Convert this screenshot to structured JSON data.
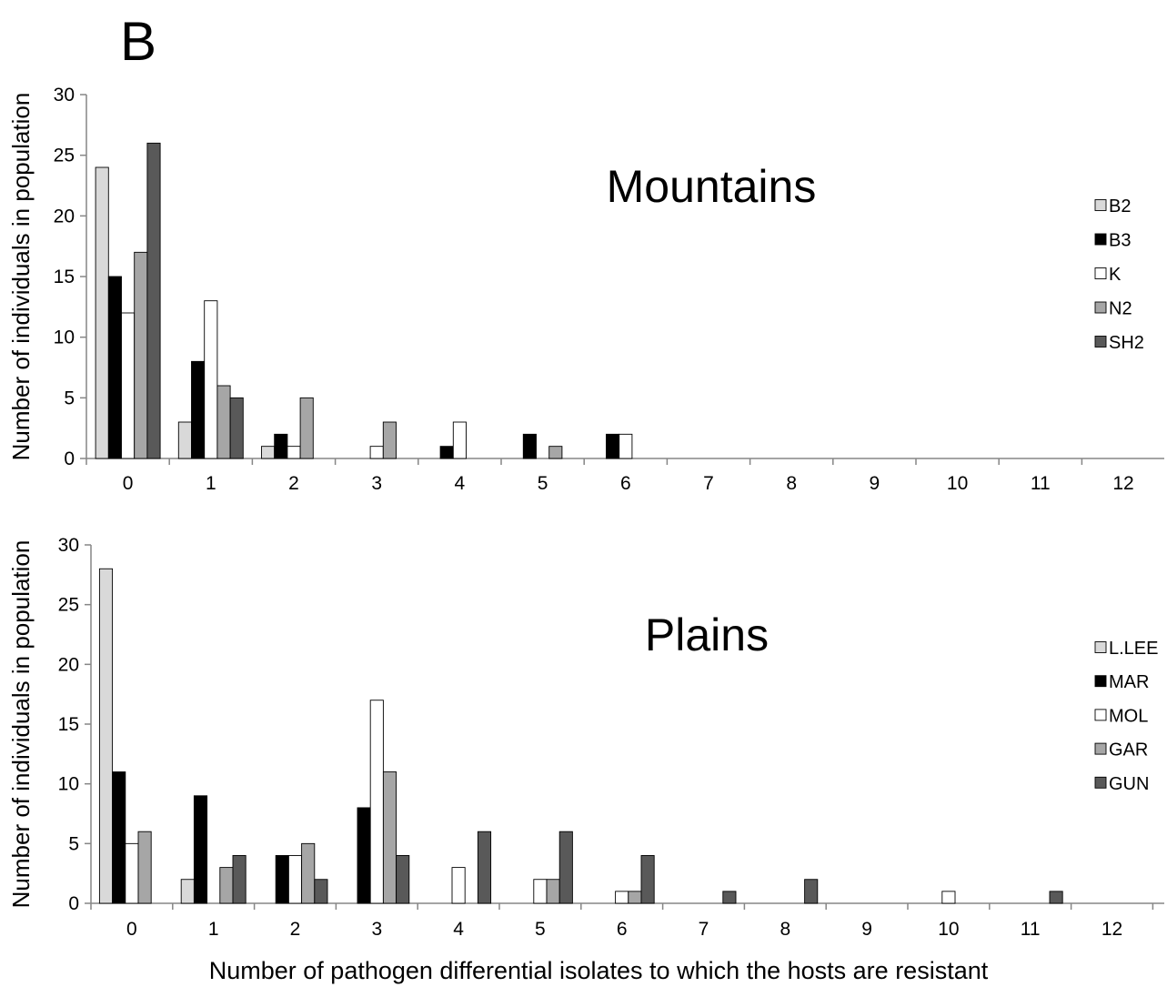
{
  "panel_label": "B",
  "xlabel": "Number of pathogen differential isolates to which the hosts are resistant",
  "chart_data": [
    {
      "type": "bar",
      "title": "Mountains",
      "ylabel": "Number of individuals in population",
      "xlabel": "Number of pathogen differential isolates to which the hosts are resistant",
      "ylim": [
        0,
        30
      ],
      "yticks": [
        0,
        5,
        10,
        15,
        20,
        25,
        30
      ],
      "categories": [
        "0",
        "1",
        "2",
        "3",
        "4",
        "5",
        "6",
        "7",
        "8",
        "9",
        "10",
        "11",
        "12"
      ],
      "legend_position": "right",
      "grid": false,
      "series": [
        {
          "name": "B2",
          "color": "#d9d9d9",
          "values": [
            24,
            3,
            1,
            0,
            0,
            0,
            0,
            0,
            0,
            0,
            0,
            0,
            0
          ]
        },
        {
          "name": "B3",
          "color": "#000000",
          "values": [
            15,
            8,
            2,
            0,
            1,
            2,
            2,
            0,
            0,
            0,
            0,
            0,
            0
          ]
        },
        {
          "name": "K",
          "color": "#ffffff",
          "values": [
            12,
            13,
            1,
            1,
            3,
            0,
            2,
            0,
            0,
            0,
            0,
            0,
            0
          ]
        },
        {
          "name": "N2",
          "color": "#a6a6a6",
          "values": [
            17,
            6,
            5,
            3,
            0,
            1,
            0,
            0,
            0,
            0,
            0,
            0,
            0
          ]
        },
        {
          "name": "SH2",
          "color": "#595959",
          "values": [
            26,
            5,
            0,
            0,
            0,
            0,
            0,
            0,
            0,
            0,
            0,
            0,
            0
          ]
        }
      ]
    },
    {
      "type": "bar",
      "title": "Plains",
      "ylabel": "Number of individuals in population",
      "xlabel": "Number of pathogen differential isolates to which the hosts are resistant",
      "ylim": [
        0,
        30
      ],
      "yticks": [
        0,
        5,
        10,
        15,
        20,
        25,
        30
      ],
      "categories": [
        "0",
        "1",
        "2",
        "3",
        "4",
        "5",
        "6",
        "7",
        "8",
        "9",
        "10",
        "11",
        "12"
      ],
      "legend_position": "right",
      "grid": false,
      "series": [
        {
          "name": "L.LEE",
          "color": "#d9d9d9",
          "values": [
            28,
            2,
            0,
            0,
            0,
            0,
            0,
            0,
            0,
            0,
            0,
            0,
            0
          ]
        },
        {
          "name": "MAR",
          "color": "#000000",
          "values": [
            11,
            9,
            4,
            8,
            0,
            0,
            0,
            0,
            0,
            0,
            0,
            0,
            0
          ]
        },
        {
          "name": "MOL",
          "color": "#ffffff",
          "values": [
            5,
            0,
            4,
            17,
            3,
            2,
            1,
            0,
            0,
            0,
            1,
            0,
            0
          ]
        },
        {
          "name": "GAR",
          "color": "#a6a6a6",
          "values": [
            6,
            3,
            5,
            11,
            0,
            2,
            1,
            0,
            0,
            0,
            0,
            0,
            0
          ]
        },
        {
          "name": "GUN",
          "color": "#595959",
          "values": [
            0,
            4,
            2,
            4,
            6,
            6,
            4,
            1,
            2,
            0,
            0,
            1,
            0
          ]
        }
      ]
    }
  ]
}
